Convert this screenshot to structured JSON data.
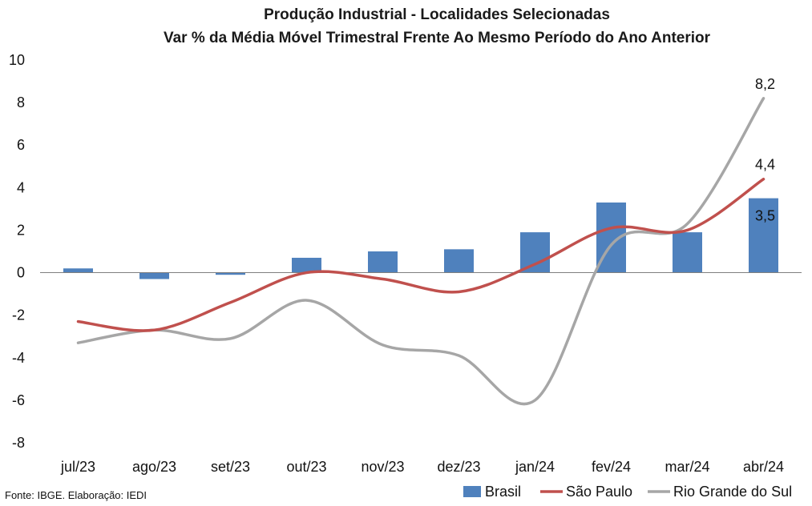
{
  "chart_data": {
    "type": "bar",
    "title": "Produção Industrial - Localidades Selecionadas",
    "subtitle": "Var % da Média Móvel Trimestral Frente Ao Mesmo Período do Ano Anterior",
    "categories": [
      "jul/23",
      "ago/23",
      "set/23",
      "out/23",
      "nov/23",
      "dez/23",
      "jan/24",
      "fev/24",
      "mar/24",
      "abr/24"
    ],
    "ylim": [
      -8,
      10
    ],
    "yticks": [
      "10",
      "8",
      "6",
      "4",
      "2",
      "0",
      "-2",
      "-4",
      "-6",
      "-8"
    ],
    "grid": false,
    "legend_position": "bottom-right",
    "series": [
      {
        "name": "Brasil",
        "kind": "bar",
        "color": "#4f81bd",
        "values": [
          0.2,
          -0.3,
          -0.1,
          0.7,
          1.0,
          1.1,
          1.9,
          3.3,
          1.9,
          3.5
        ]
      },
      {
        "name": "São Paulo",
        "kind": "line",
        "color": "#c0504d",
        "values": [
          -2.3,
          -2.7,
          -1.4,
          0.0,
          -0.3,
          -0.9,
          0.4,
          2.1,
          2.0,
          4.4
        ]
      },
      {
        "name": "Rio Grande do Sul",
        "kind": "line",
        "color": "#a6a6a6",
        "values": [
          -3.3,
          -2.7,
          -3.1,
          -1.3,
          -3.4,
          -3.9,
          -6.0,
          1.3,
          2.3,
          8.2
        ]
      }
    ],
    "data_labels": [
      {
        "series": "Rio Grande do Sul",
        "category": "abr/24",
        "text": "8,2"
      },
      {
        "series": "São Paulo",
        "category": "abr/24",
        "text": "4,4"
      },
      {
        "series": "Brasil",
        "category": "abr/24",
        "text": "3,5"
      }
    ]
  },
  "footer": {
    "source": "Fonte: IBGE. Elaboração: IEDI"
  }
}
